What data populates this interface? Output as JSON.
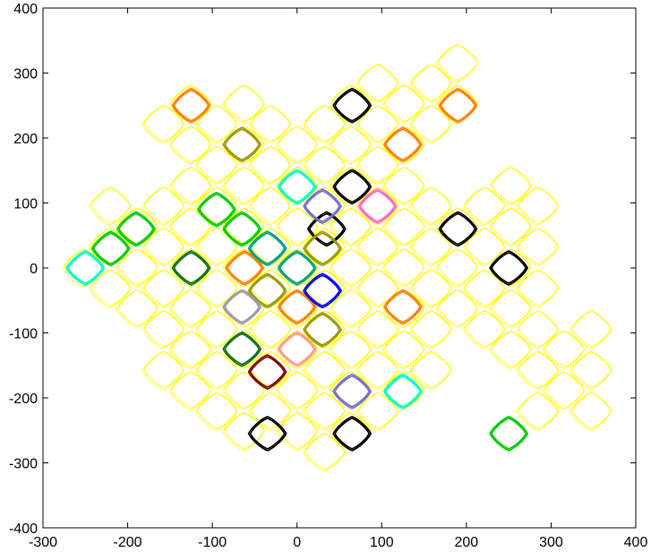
{
  "chart_data": {
    "type": "scatter",
    "xlim": [
      -300,
      400
    ],
    "ylim": [
      -400,
      400
    ],
    "xticks": [
      -300,
      -200,
      -100,
      0,
      100,
      200,
      300,
      400
    ],
    "yticks": [
      -400,
      -300,
      -200,
      -100,
      0,
      100,
      200,
      300,
      400
    ],
    "series": [
      {
        "color": "#ffff00",
        "x": [
          189,
          95,
          158,
          -126,
          -63,
          63,
          126,
          189,
          -158,
          -95,
          -32,
          32,
          95,
          158,
          -126,
          -63,
          0,
          63,
          126,
          -95,
          -32,
          32,
          95,
          -126,
          -63,
          0,
          63,
          126,
          252,
          -221,
          -158,
          -95,
          -32,
          32,
          95,
          158,
          221,
          284,
          -189,
          -126,
          -63,
          0,
          63,
          126,
          189,
          252,
          -221,
          -158,
          -95,
          -32,
          32,
          95,
          158,
          221,
          284,
          -252,
          -189,
          -126,
          -63,
          0,
          63,
          126,
          189,
          252,
          -221,
          -158,
          -95,
          -32,
          32,
          95,
          158,
          221,
          284,
          -189,
          -126,
          -63,
          0,
          63,
          126,
          189,
          252,
          -158,
          -95,
          -32,
          32,
          95,
          158,
          221,
          284,
          347,
          -126,
          -63,
          0,
          63,
          126,
          252,
          315,
          -158,
          -95,
          -32,
          32,
          95,
          158,
          284,
          347,
          -126,
          -63,
          0,
          63,
          126,
          315,
          -95,
          -32,
          32,
          95,
          284,
          347,
          -63,
          0,
          63,
          32
        ],
        "y": [
          315,
          284,
          284,
          252,
          252,
          252,
          252,
          252,
          221,
          221,
          221,
          221,
          221,
          221,
          189,
          189,
          189,
          189,
          189,
          158,
          158,
          158,
          158,
          126,
          126,
          126,
          126,
          126,
          126,
          95,
          95,
          95,
          95,
          95,
          95,
          95,
          95,
          95,
          63,
          63,
          63,
          63,
          63,
          63,
          63,
          63,
          32,
          32,
          32,
          32,
          32,
          32,
          32,
          32,
          32,
          0,
          0,
          0,
          0,
          0,
          0,
          0,
          0,
          0,
          -32,
          -32,
          -32,
          -32,
          -32,
          -32,
          -32,
          -32,
          -32,
          -63,
          -63,
          -63,
          -63,
          -63,
          -63,
          -63,
          -63,
          -95,
          -95,
          -95,
          -95,
          -95,
          -95,
          -95,
          -95,
          -95,
          -126,
          -126,
          -126,
          -126,
          -126,
          -126,
          -126,
          -158,
          -158,
          -158,
          -158,
          -158,
          -158,
          -158,
          -158,
          -189,
          -189,
          -189,
          -189,
          -189,
          -189,
          -221,
          -221,
          -221,
          -221,
          -221,
          -221,
          -252,
          -252,
          -252,
          -284
        ]
      },
      {
        "color": "#ff8000",
        "x": [
          -125,
          190,
          125,
          125,
          -62,
          0
        ],
        "y": [
          250,
          250,
          190,
          -60,
          0,
          -60
        ]
      },
      {
        "color": "#000000",
        "x": [
          65,
          65,
          35,
          190,
          250,
          -35,
          65
        ],
        "y": [
          250,
          125,
          60,
          60,
          0,
          -255,
          -255
        ]
      },
      {
        "color": "#9a9a00",
        "x": [
          -65,
          30,
          -35,
          30
        ],
        "y": [
          190,
          30,
          -35,
          -95
        ]
      },
      {
        "color": "#00ffcc",
        "x": [
          0,
          -250,
          125
        ],
        "y": [
          125,
          0,
          -190
        ]
      },
      {
        "color": "#7070d0",
        "x": [
          30,
          65
        ],
        "y": [
          95,
          -190
        ]
      },
      {
        "color": "#ff66cc",
        "x": [
          95
        ],
        "y": [
          95
        ]
      },
      {
        "color": "#00cc00",
        "x": [
          -95,
          -65,
          -190,
          -220,
          250
        ],
        "y": [
          90,
          60,
          60,
          30,
          -255
        ]
      },
      {
        "color": "#00a080",
        "x": [
          -35,
          0
        ],
        "y": [
          30,
          0
        ]
      },
      {
        "color": "#107010",
        "x": [
          -125,
          -65
        ],
        "y": [
          0,
          -125
        ]
      },
      {
        "color": "#0000ff",
        "x": [
          30
        ],
        "y": [
          -35
        ]
      },
      {
        "color": "#9999aa",
        "x": [
          -65
        ],
        "y": [
          -60
        ]
      },
      {
        "color": "#ff9999",
        "x": [
          0
        ],
        "y": [
          -125
        ]
      },
      {
        "color": "#800000",
        "x": [
          -35
        ],
        "y": [
          -160
        ]
      }
    ]
  }
}
